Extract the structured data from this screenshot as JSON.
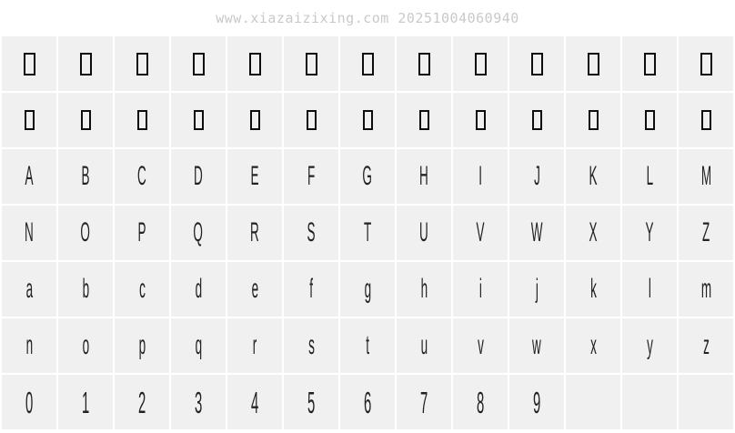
{
  "watermark": "www.xiazaizixing.com 20251004060940",
  "colors": {
    "page_bg": "#ffffff",
    "cell_bg": "#f0f0f0",
    "glyph_color": "#222222",
    "box_color": "#0d0d0d",
    "watermark_color": "#c9c9c9"
  },
  "grid": {
    "columns": 13,
    "rows": [
      {
        "name": "row-missing-glyphs-1",
        "style": "box-lg",
        "glyph_prefix": "missing-glyph-",
        "cells": [
          "□",
          "□",
          "□",
          "□",
          "□",
          "□",
          "□",
          "□",
          "□",
          "□",
          "□",
          "□",
          "□"
        ]
      },
      {
        "name": "row-missing-glyphs-2",
        "style": "box-sm",
        "glyph_prefix": "missing-glyph-",
        "cells": [
          "□",
          "□",
          "□",
          "□",
          "□",
          "□",
          "□",
          "□",
          "□",
          "□",
          "□",
          "□",
          "□"
        ]
      },
      {
        "name": "row-uppercase-1",
        "style": "upper",
        "glyph_prefix": "glyph-upper-",
        "cells": [
          "A",
          "B",
          "C",
          "D",
          "E",
          "F",
          "G",
          "H",
          "I",
          "J",
          "K",
          "L",
          "M"
        ]
      },
      {
        "name": "row-uppercase-2",
        "style": "upper",
        "glyph_prefix": "glyph-upper-",
        "cells": [
          "N",
          "O",
          "P",
          "Q",
          "R",
          "S",
          "T",
          "U",
          "V",
          "W",
          "X",
          "Y",
          "Z"
        ]
      },
      {
        "name": "row-lowercase-1",
        "style": "lower",
        "glyph_prefix": "glyph-lower-",
        "cells": [
          "a",
          "b",
          "c",
          "d",
          "e",
          "f",
          "g",
          "h",
          "i",
          "j",
          "k",
          "l",
          "m"
        ]
      },
      {
        "name": "row-lowercase-2",
        "style": "lower",
        "glyph_prefix": "glyph-lower-",
        "cells": [
          "n",
          "o",
          "p",
          "q",
          "r",
          "s",
          "t",
          "u",
          "v",
          "w",
          "x",
          "y",
          "z"
        ]
      },
      {
        "name": "row-digits",
        "style": "digit",
        "glyph_prefix": "glyph-digit-",
        "cells": [
          "0",
          "1",
          "2",
          "3",
          "4",
          "5",
          "6",
          "7",
          "8",
          "9",
          "",
          "",
          ""
        ]
      }
    ]
  }
}
